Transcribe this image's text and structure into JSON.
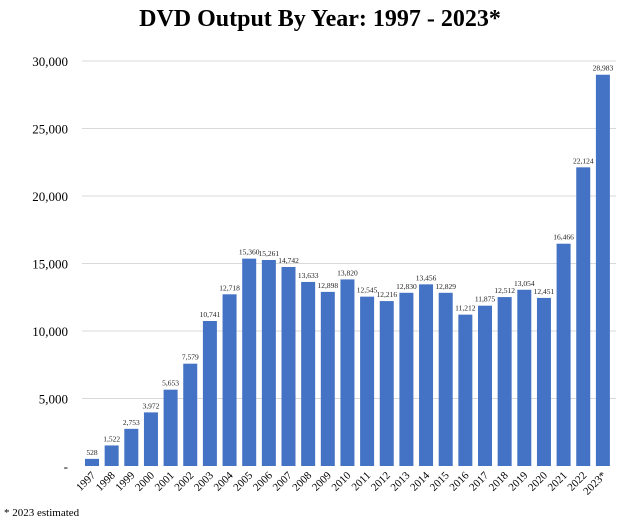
{
  "chart_data": {
    "type": "bar",
    "title": "DVD Output By Year: 1997 - 2023*",
    "footnote": "* 2023 estimated",
    "categories": [
      "1997",
      "1998",
      "1999",
      "2000",
      "2001",
      "2002",
      "2003",
      "2004",
      "2005",
      "2006",
      "2007",
      "2008",
      "2009",
      "2010",
      "2011",
      "2012",
      "2013",
      "2014",
      "2015",
      "2016",
      "2017",
      "2018",
      "2019",
      "2020",
      "2021",
      "2022",
      "2023*"
    ],
    "values": [
      528,
      1522,
      2753,
      3972,
      5653,
      7579,
      10741,
      12718,
      15360,
      15261,
      14742,
      13633,
      12898,
      13820,
      12545,
      12216,
      12830,
      13456,
      12829,
      11212,
      11875,
      12512,
      13054,
      12451,
      16466,
      22124,
      28983
    ],
    "ylim": [
      0,
      30000
    ],
    "yticks": [
      0,
      5000,
      10000,
      15000,
      20000,
      25000,
      30000
    ],
    "ytick_labels": [
      "-",
      "5,000",
      "10,000",
      "15,000",
      "20,000",
      "25,000",
      "30,000"
    ],
    "grid": true,
    "bar_color": "#4472c4"
  }
}
